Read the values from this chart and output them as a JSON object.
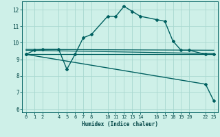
{
  "xlabel": "Humidex (Indice chaleur)",
  "bg_color": "#cef0e8",
  "grid_color": "#a8d8d0",
  "line_color": "#006060",
  "xticks": [
    0,
    1,
    2,
    4,
    5,
    6,
    7,
    8,
    10,
    11,
    12,
    13,
    14,
    16,
    17,
    18,
    19,
    20,
    22,
    23
  ],
  "yticks": [
    6,
    7,
    8,
    9,
    10,
    11,
    12
  ],
  "ylim": [
    5.8,
    12.5
  ],
  "xlim": [
    -0.5,
    23.5
  ],
  "series": [
    {
      "x": [
        0,
        1,
        2,
        4,
        5,
        6,
        7,
        8,
        10,
        11,
        12,
        13,
        14,
        16,
        17,
        18,
        19,
        20,
        22,
        23
      ],
      "y": [
        9.3,
        9.55,
        9.6,
        9.6,
        8.4,
        9.3,
        10.3,
        10.5,
        11.6,
        11.6,
        12.2,
        11.9,
        11.6,
        11.4,
        11.3,
        10.1,
        9.55,
        9.55,
        9.3,
        9.3
      ],
      "marker": "D",
      "markersize": 2.0,
      "lw": 1.0
    },
    {
      "x": [
        0,
        23
      ],
      "y": [
        9.3,
        9.3
      ],
      "marker": null,
      "markersize": 0,
      "lw": 0.9
    },
    {
      "x": [
        0,
        23
      ],
      "y": [
        9.55,
        9.35
      ],
      "marker": null,
      "markersize": 0,
      "lw": 0.9
    },
    {
      "x": [
        0,
        23
      ],
      "y": [
        9.6,
        9.55
      ],
      "marker": null,
      "markersize": 0,
      "lw": 0.9
    },
    {
      "x": [
        0,
        22,
        23
      ],
      "y": [
        9.3,
        7.5,
        6.5
      ],
      "marker": "D",
      "markersize": 2.0,
      "lw": 1.0
    }
  ]
}
